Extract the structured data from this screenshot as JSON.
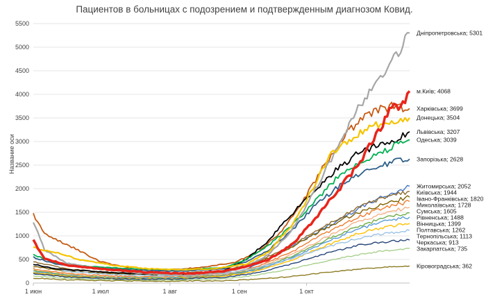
{
  "chart_data": {
    "type": "line",
    "title": "Пациентов в больницах с подозрением и подтвержденным диагнозом Ковид.",
    "ylabel": "Название оси",
    "xlabel": "",
    "ylim": [
      0,
      5500
    ],
    "yticks": [
      0,
      500,
      1000,
      1500,
      2000,
      2500,
      3000,
      3500,
      4000,
      4500,
      5000,
      5500
    ],
    "x_range_days": [
      0,
      168
    ],
    "x_ticks": [
      {
        "label": "1 июн",
        "day": 0
      },
      {
        "label": "1 июл",
        "day": 30
      },
      {
        "label": "1 авг",
        "day": 61
      },
      {
        "label": "1 сен",
        "day": 92
      },
      {
        "label": "1 окт",
        "day": 122
      }
    ],
    "grid": true,
    "legend": "none",
    "series": [
      {
        "name": "Дніпропетровська",
        "label": "Дніпропетровська; 5301",
        "color": "#a6a6a6",
        "width": 2.2,
        "points": [
          [
            0,
            1300
          ],
          [
            5,
            700
          ],
          [
            15,
            420
          ],
          [
            30,
            300
          ],
          [
            50,
            200
          ],
          [
            70,
            160
          ],
          [
            85,
            220
          ],
          [
            95,
            350
          ],
          [
            105,
            600
          ],
          [
            115,
            1100
          ],
          [
            125,
            1900
          ],
          [
            135,
            2800
          ],
          [
            145,
            3700
          ],
          [
            155,
            4400
          ],
          [
            162,
            4800
          ],
          [
            168,
            5301
          ]
        ]
      },
      {
        "name": "м.Київ",
        "label": "м.Київ; 4068",
        "color": "#e8251c",
        "width": 3.5,
        "points": [
          [
            0,
            900
          ],
          [
            5,
            520
          ],
          [
            15,
            380
          ],
          [
            30,
            300
          ],
          [
            50,
            230
          ],
          [
            70,
            200
          ],
          [
            85,
            250
          ],
          [
            95,
            350
          ],
          [
            105,
            500
          ],
          [
            115,
            800
          ],
          [
            125,
            1300
          ],
          [
            135,
            1900
          ],
          [
            145,
            2500
          ],
          [
            150,
            2900
          ],
          [
            155,
            3300
          ],
          [
            160,
            3700
          ],
          [
            165,
            3800
          ],
          [
            168,
            4068
          ]
        ]
      },
      {
        "name": "Харківська",
        "label": "Харківська; 3699",
        "color": "#c55a11",
        "width": 1.8,
        "points": [
          [
            0,
            1450
          ],
          [
            5,
            1050
          ],
          [
            12,
            880
          ],
          [
            20,
            700
          ],
          [
            30,
            450
          ],
          [
            45,
            300
          ],
          [
            60,
            280
          ],
          [
            75,
            330
          ],
          [
            90,
            440
          ],
          [
            100,
            650
          ],
          [
            110,
            1050
          ],
          [
            120,
            1700
          ],
          [
            130,
            2500
          ],
          [
            140,
            3200
          ],
          [
            150,
            3600
          ],
          [
            160,
            3750
          ],
          [
            168,
            3699
          ]
        ]
      },
      {
        "name": "Донецька",
        "label": "Донецька; 3504",
        "color": "#f5c400",
        "width": 2.2,
        "points": [
          [
            0,
            750
          ],
          [
            10,
            650
          ],
          [
            20,
            500
          ],
          [
            35,
            380
          ],
          [
            50,
            310
          ],
          [
            65,
            280
          ],
          [
            80,
            300
          ],
          [
            95,
            400
          ],
          [
            105,
            650
          ],
          [
            115,
            1200
          ],
          [
            125,
            2000
          ],
          [
            132,
            2700
          ],
          [
            140,
            3000
          ],
          [
            150,
            3300
          ],
          [
            160,
            3450
          ],
          [
            168,
            3504
          ]
        ]
      },
      {
        "name": "Львівська",
        "label": "Львівська; 3207",
        "color": "#000000",
        "width": 1.8,
        "points": [
          [
            0,
            400
          ],
          [
            10,
            300
          ],
          [
            25,
            250
          ],
          [
            45,
            200
          ],
          [
            65,
            180
          ],
          [
            85,
            260
          ],
          [
            95,
            500
          ],
          [
            105,
            900
          ],
          [
            115,
            1450
          ],
          [
            125,
            1900
          ],
          [
            135,
            2400
          ],
          [
            145,
            2750
          ],
          [
            155,
            2950
          ],
          [
            162,
            3050
          ],
          [
            168,
            3207
          ]
        ]
      },
      {
        "name": "Одеська",
        "label": "Одеська; 3039",
        "color": "#00b050",
        "width": 1.8,
        "points": [
          [
            0,
            600
          ],
          [
            10,
            420
          ],
          [
            25,
            350
          ],
          [
            45,
            300
          ],
          [
            65,
            280
          ],
          [
            85,
            330
          ],
          [
            95,
            500
          ],
          [
            105,
            800
          ],
          [
            115,
            1200
          ],
          [
            125,
            1700
          ],
          [
            135,
            2200
          ],
          [
            145,
            2500
          ],
          [
            155,
            2750
          ],
          [
            162,
            2950
          ],
          [
            168,
            3039
          ]
        ]
      },
      {
        "name": "Запорізька",
        "label": "Запорізька; 2628",
        "color": "#2e5f8a",
        "width": 1.8,
        "points": [
          [
            0,
            550
          ],
          [
            10,
            400
          ],
          [
            25,
            330
          ],
          [
            45,
            270
          ],
          [
            65,
            250
          ],
          [
            85,
            300
          ],
          [
            95,
            450
          ],
          [
            105,
            700
          ],
          [
            115,
            1100
          ],
          [
            125,
            1600
          ],
          [
            135,
            2000
          ],
          [
            145,
            2300
          ],
          [
            155,
            2500
          ],
          [
            162,
            2580
          ],
          [
            168,
            2628
          ]
        ]
      },
      {
        "name": "Житомирська",
        "label": "Житомирська; 2052",
        "color": "#4472c4",
        "width": 1.4,
        "points": [
          [
            0,
            200
          ],
          [
            20,
            120
          ],
          [
            45,
            80
          ],
          [
            70,
            90
          ],
          [
            90,
            200
          ],
          [
            105,
            500
          ],
          [
            120,
            900
          ],
          [
            135,
            1300
          ],
          [
            150,
            1700
          ],
          [
            160,
            1900
          ],
          [
            168,
            2052
          ]
        ]
      },
      {
        "name": "Київська",
        "label": "Київська; 1944",
        "color": "#8c6a2b",
        "width": 1.4,
        "points": [
          [
            0,
            450
          ],
          [
            15,
            300
          ],
          [
            35,
            220
          ],
          [
            60,
            200
          ],
          [
            85,
            260
          ],
          [
            100,
            450
          ],
          [
            115,
            800
          ],
          [
            130,
            1200
          ],
          [
            145,
            1600
          ],
          [
            158,
            1850
          ],
          [
            168,
            1944
          ]
        ]
      },
      {
        "name": "Івано-Франківська",
        "label": "Івано-Франківська; 1820",
        "color": "#7f6000",
        "width": 1.4,
        "points": [
          [
            0,
            350
          ],
          [
            15,
            250
          ],
          [
            35,
            200
          ],
          [
            60,
            170
          ],
          [
            85,
            230
          ],
          [
            100,
            420
          ],
          [
            115,
            750
          ],
          [
            130,
            1150
          ],
          [
            145,
            1500
          ],
          [
            158,
            1700
          ],
          [
            168,
            1820
          ]
        ]
      },
      {
        "name": "Миколаївська",
        "label": "Миколаївська; 1728",
        "color": "#ed7d31",
        "width": 1.4,
        "points": [
          [
            0,
            300
          ],
          [
            15,
            200
          ],
          [
            35,
            150
          ],
          [
            60,
            130
          ],
          [
            85,
            180
          ],
          [
            100,
            350
          ],
          [
            115,
            650
          ],
          [
            130,
            1050
          ],
          [
            145,
            1400
          ],
          [
            158,
            1620
          ],
          [
            168,
            1728
          ]
        ]
      },
      {
        "name": "Сумська",
        "label": "Сумська; 1605",
        "color": "#f4b183",
        "width": 1.4,
        "points": [
          [
            0,
            280
          ],
          [
            15,
            180
          ],
          [
            35,
            130
          ],
          [
            60,
            120
          ],
          [
            85,
            170
          ],
          [
            100,
            320
          ],
          [
            115,
            600
          ],
          [
            130,
            950
          ],
          [
            145,
            1300
          ],
          [
            158,
            1500
          ],
          [
            168,
            1605
          ]
        ]
      },
      {
        "name": "Рівненська",
        "label": "Рівненська; 1488",
        "color": "#70ad47",
        "width": 1.4,
        "points": [
          [
            0,
            260
          ],
          [
            15,
            170
          ],
          [
            35,
            120
          ],
          [
            60,
            110
          ],
          [
            85,
            160
          ],
          [
            100,
            300
          ],
          [
            115,
            560
          ],
          [
            130,
            900
          ],
          [
            145,
            1200
          ],
          [
            158,
            1400
          ],
          [
            168,
            1488
          ]
        ]
      },
      {
        "name": "Вінницька",
        "label": "Вінницька; 1399",
        "color": "#5b9bd5",
        "width": 1.4,
        "points": [
          [
            0,
            240
          ],
          [
            15,
            160
          ],
          [
            35,
            110
          ],
          [
            60,
            100
          ],
          [
            85,
            150
          ],
          [
            100,
            280
          ],
          [
            115,
            520
          ],
          [
            130,
            850
          ],
          [
            145,
            1150
          ],
          [
            158,
            1320
          ],
          [
            168,
            1399
          ]
        ]
      },
      {
        "name": "Полтавська",
        "label": "Полтавська; 1262",
        "color": "#ffc000",
        "width": 1.4,
        "points": [
          [
            0,
            220
          ],
          [
            15,
            150
          ],
          [
            35,
            100
          ],
          [
            60,
            90
          ],
          [
            85,
            140
          ],
          [
            100,
            260
          ],
          [
            115,
            480
          ],
          [
            130,
            780
          ],
          [
            145,
            1050
          ],
          [
            158,
            1200
          ],
          [
            168,
            1262
          ]
        ]
      },
      {
        "name": "Тернопільська",
        "label": "Тернопільська; 1113",
        "color": "#9dc3e6",
        "width": 1.4,
        "points": [
          [
            0,
            400
          ],
          [
            15,
            250
          ],
          [
            35,
            180
          ],
          [
            60,
            150
          ],
          [
            85,
            200
          ],
          [
            100,
            320
          ],
          [
            115,
            520
          ],
          [
            130,
            750
          ],
          [
            145,
            950
          ],
          [
            158,
            1060
          ],
          [
            168,
            1113
          ]
        ]
      },
      {
        "name": "Черкаська",
        "label": "Черкаська; 913",
        "color": "#264478",
        "width": 1.4,
        "points": [
          [
            0,
            200
          ],
          [
            15,
            130
          ],
          [
            35,
            90
          ],
          [
            60,
            80
          ],
          [
            85,
            120
          ],
          [
            100,
            220
          ],
          [
            115,
            400
          ],
          [
            130,
            620
          ],
          [
            145,
            800
          ],
          [
            158,
            880
          ],
          [
            168,
            913
          ]
        ]
      },
      {
        "name": "Закарпатська",
        "label": "Закарпатська; 735",
        "color": "#a9d18e",
        "width": 1.4,
        "points": [
          [
            0,
            150
          ],
          [
            15,
            100
          ],
          [
            35,
            70
          ],
          [
            60,
            60
          ],
          [
            85,
            90
          ],
          [
            100,
            170
          ],
          [
            115,
            300
          ],
          [
            130,
            460
          ],
          [
            145,
            600
          ],
          [
            158,
            690
          ],
          [
            168,
            735
          ]
        ]
      },
      {
        "name": "Кіровоградська",
        "label": "Кіровоградська; 362",
        "color": "#8d7c24",
        "width": 1.4,
        "points": [
          [
            0,
            100
          ],
          [
            15,
            70
          ],
          [
            35,
            50
          ],
          [
            60,
            40
          ],
          [
            85,
            50
          ],
          [
            100,
            80
          ],
          [
            115,
            140
          ],
          [
            130,
            220
          ],
          [
            145,
            290
          ],
          [
            158,
            340
          ],
          [
            168,
            362
          ]
        ]
      }
    ]
  }
}
